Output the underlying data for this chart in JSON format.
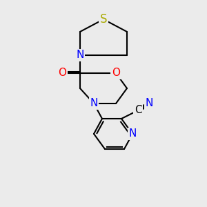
{
  "bg_color": "#ebebeb",
  "bond_color": "#000000",
  "bond_width": 1.5,
  "atom_colors": {
    "N": "#0000ff",
    "O": "#ff0000",
    "S": "#aaaa00",
    "C": "#000000"
  },
  "font_size": 11,
  "figsize": [
    3.0,
    3.0
  ],
  "dpi": 100
}
